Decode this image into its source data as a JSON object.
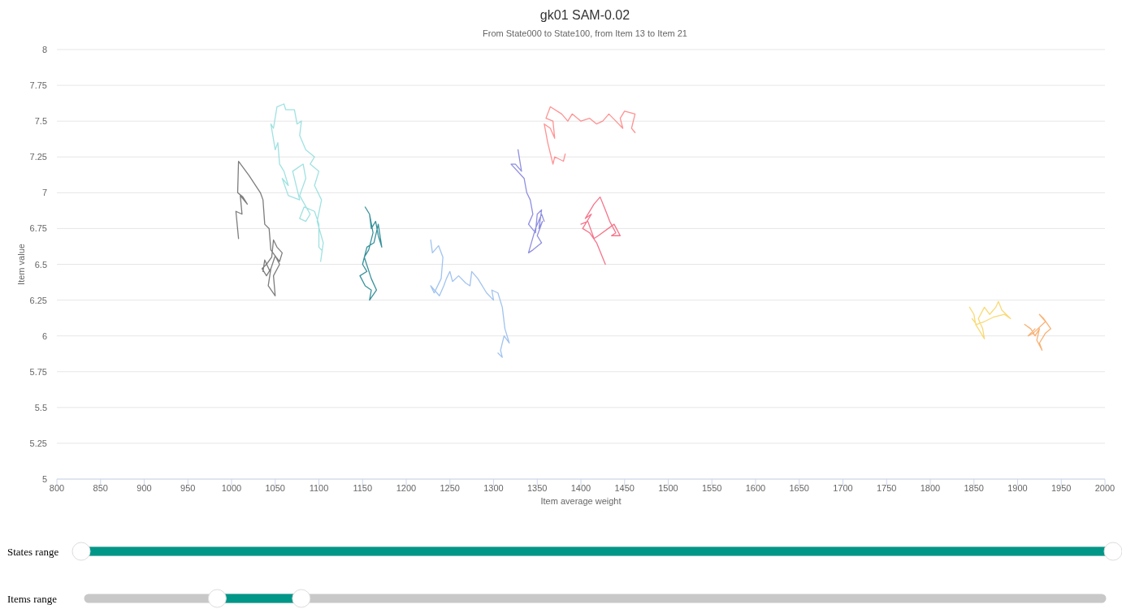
{
  "chart_data": {
    "type": "line",
    "title": "gk01 SAM-0.02",
    "subtitle": "From State000 to State100, from Item 13 to Item 21",
    "xlabel": "Item average weight",
    "ylabel": "Item value",
    "xlim": [
      800,
      2000
    ],
    "xticks": [
      800,
      850,
      900,
      950,
      1000,
      1050,
      1100,
      1150,
      1200,
      1250,
      1300,
      1350,
      1400,
      1450,
      1500,
      1550,
      1600,
      1650,
      1700,
      1750,
      1800,
      1850,
      1900,
      1950,
      2000
    ],
    "ylim": [
      5,
      8
    ],
    "yticks": [
      5,
      5.25,
      5.5,
      5.75,
      6,
      6.25,
      6.5,
      6.75,
      7,
      7.25,
      7.5,
      7.75,
      8
    ],
    "grid": "y",
    "marker": "none",
    "line_style": "solid",
    "annotations": [
      "States range",
      "Items range"
    ],
    "series": [
      {
        "color": "#666666",
        "x": [
          1008,
          1005,
          1012,
          1010,
          1018,
          1013,
          1007,
          1008,
          1020,
          1033,
          1036,
          1038,
          1043,
          1045,
          1051,
          1055,
          1058,
          1052,
          1048,
          1046,
          1040,
          1035,
          1040,
          1045,
          1042,
          1050,
          1048,
          1055,
          1050,
          1044,
          1038,
          1036
        ],
        "values": [
          6.68,
          6.87,
          6.85,
          6.98,
          6.92,
          6.97,
          7.0,
          7.22,
          7.12,
          7.0,
          6.95,
          6.78,
          6.75,
          6.6,
          6.55,
          6.52,
          6.58,
          6.62,
          6.67,
          6.55,
          6.5,
          6.47,
          6.42,
          6.47,
          6.35,
          6.28,
          6.42,
          6.5,
          6.56,
          6.45,
          6.53,
          6.45
        ]
      },
      {
        "color": "#8fdcdc",
        "x": [
          1102,
          1105,
          1098,
          1103,
          1095,
          1100,
          1090,
          1095,
          1085,
          1078,
          1080,
          1075,
          1072,
          1062,
          1060,
          1052,
          1048,
          1045,
          1050,
          1053,
          1055,
          1060,
          1065,
          1058,
          1065,
          1078,
          1070,
          1082,
          1085,
          1078,
          1090,
          1085,
          1078,
          1083,
          1095,
          1100,
          1100,
          1103
        ],
        "values": [
          6.52,
          6.65,
          6.8,
          6.95,
          7.05,
          7.15,
          7.2,
          7.25,
          7.3,
          7.4,
          7.5,
          7.48,
          7.58,
          7.58,
          7.62,
          7.6,
          7.45,
          7.48,
          7.3,
          7.35,
          7.2,
          7.15,
          7.05,
          7.1,
          6.98,
          6.95,
          7.15,
          7.2,
          7.1,
          6.98,
          6.85,
          6.8,
          6.82,
          6.9,
          6.87,
          6.78,
          6.62,
          6.6
        ]
      },
      {
        "color": "#167e8a",
        "x": [
          1153,
          1158,
          1160,
          1165,
          1168,
          1172,
          1168,
          1163,
          1155,
          1150,
          1155,
          1147,
          1153,
          1160,
          1158,
          1166,
          1160,
          1152,
          1157,
          1162,
          1158
        ],
        "values": [
          6.9,
          6.85,
          6.75,
          6.8,
          6.7,
          6.62,
          6.78,
          6.65,
          6.62,
          6.5,
          6.45,
          6.42,
          6.35,
          6.32,
          6.25,
          6.32,
          6.4,
          6.55,
          6.6,
          6.72,
          6.85
        ]
      },
      {
        "color": "#90b8ec",
        "x": [
          1228,
          1230,
          1237,
          1242,
          1240,
          1232,
          1228,
          1238,
          1243,
          1246,
          1250,
          1253,
          1260,
          1268,
          1273,
          1275,
          1282,
          1292,
          1300,
          1298,
          1305,
          1310,
          1313,
          1318,
          1312,
          1308,
          1310,
          1305
        ],
        "values": [
          6.67,
          6.58,
          6.63,
          6.55,
          6.4,
          6.3,
          6.35,
          6.28,
          6.35,
          6.4,
          6.45,
          6.38,
          6.42,
          6.37,
          6.35,
          6.45,
          6.4,
          6.3,
          6.25,
          6.32,
          6.3,
          6.2,
          6.05,
          5.95,
          6.0,
          5.9,
          5.85,
          5.88
        ]
      },
      {
        "color": "#7b7bdc",
        "x": [
          1328,
          1332,
          1325,
          1320,
          1335,
          1338,
          1342,
          1345,
          1340,
          1348,
          1350,
          1355,
          1352,
          1356,
          1350,
          1355,
          1345,
          1340,
          1348,
          1355,
          1358
        ],
        "values": [
          7.3,
          7.15,
          7.2,
          7.2,
          7.1,
          7.0,
          6.95,
          6.85,
          6.78,
          6.72,
          6.85,
          6.88,
          6.75,
          6.8,
          6.7,
          6.65,
          6.6,
          6.58,
          6.75,
          6.85,
          6.8
        ]
      },
      {
        "color": "#ff7f7f",
        "x": [
          1382,
          1380,
          1370,
          1368,
          1362,
          1358,
          1365,
          1370,
          1368,
          1360,
          1365,
          1378,
          1385,
          1390,
          1400,
          1410,
          1418,
          1425,
          1432,
          1440,
          1448,
          1445,
          1450,
          1462,
          1458,
          1462
        ],
        "values": [
          7.27,
          7.22,
          7.25,
          7.2,
          7.35,
          7.48,
          7.45,
          7.38,
          7.5,
          7.52,
          7.6,
          7.55,
          7.5,
          7.55,
          7.5,
          7.52,
          7.48,
          7.5,
          7.55,
          7.5,
          7.45,
          7.52,
          7.57,
          7.55,
          7.45,
          7.42
        ]
      },
      {
        "color": "#f45b75",
        "x": [
          1428,
          1418,
          1410,
          1402,
          1412,
          1405,
          1415,
          1422,
          1428,
          1433,
          1440,
          1435,
          1445,
          1438,
          1420,
          1415,
          1408,
          1400
        ],
        "values": [
          6.5,
          6.65,
          6.72,
          6.75,
          6.85,
          6.82,
          6.92,
          6.97,
          6.88,
          6.8,
          6.72,
          6.7,
          6.7,
          6.78,
          6.7,
          6.68,
          6.8,
          6.78
        ]
      },
      {
        "color": "#f7d35c",
        "x": [
          1845,
          1850,
          1852,
          1858,
          1862,
          1860,
          1855,
          1862,
          1868,
          1875,
          1878,
          1882,
          1892,
          1885,
          1872,
          1862,
          1853,
          1848
        ],
        "values": [
          6.2,
          6.15,
          6.08,
          6.02,
          5.98,
          6.05,
          6.12,
          6.2,
          6.15,
          6.2,
          6.24,
          6.18,
          6.12,
          6.15,
          6.13,
          6.1,
          6.08,
          6.12
        ]
      },
      {
        "color": "#f7a35c",
        "x": [
          1908,
          1915,
          1920,
          1925,
          1922,
          1928,
          1925,
          1932,
          1938,
          1930,
          1925,
          1932,
          1918,
          1912,
          1920
        ],
        "values": [
          6.08,
          6.05,
          6.0,
          6.05,
          5.97,
          5.9,
          5.95,
          6.02,
          6.05,
          6.12,
          6.15,
          6.1,
          6.02,
          6.0,
          6.05
        ]
      }
    ]
  }
}
